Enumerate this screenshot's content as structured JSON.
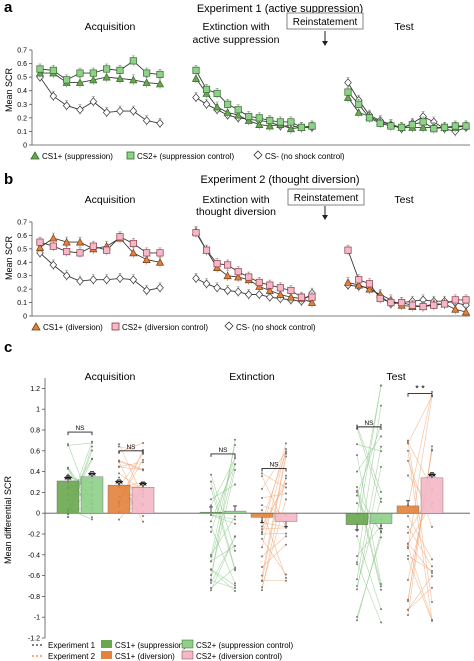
{
  "colors": {
    "cs1_supp": "#6aa84f",
    "cs2_supp": "#8fd08a",
    "cs2_supp_stroke": "#2f6b25",
    "cs1_div": "#e3823c",
    "cs2_div": "#f4b8c6",
    "cs2_div_stroke": "#8a3a4a",
    "csminus": "#ffffff",
    "line": "#3a3a3a",
    "err": "#888888"
  },
  "chart_data": [
    {
      "panel": "a",
      "type": "line",
      "title": "Experiment 1 (active suppression)",
      "ylabel": "Mean SCR",
      "ylim": [
        0,
        0.7
      ],
      "yticks": [
        "0",
        "0.1",
        "0.2",
        "0.3",
        "0.4",
        "0.5",
        "0.6",
        "0.7"
      ],
      "phases": [
        {
          "label": "Acquisition",
          "label2": ""
        },
        {
          "label": "Extinction with",
          "label2": "active suppression"
        },
        {
          "label": "Test",
          "label2": ""
        }
      ],
      "reinstatement": "Reinstatement",
      "legend": [
        "CS1+ (suppression)",
        "CS2+ (suppression control)",
        "CS- (no shock control)"
      ],
      "series": [
        {
          "name": "CS1+ (suppression)",
          "marker": "triangle",
          "phases": [
            [
              0.53,
              0.53,
              0.46,
              0.46,
              0.48,
              0.5,
              0.49,
              0.48,
              0.46,
              0.45
            ],
            [
              0.49,
              0.38,
              0.28,
              0.24,
              0.22,
              0.18,
              0.15,
              0.14,
              0.15,
              0.12,
              0.13,
              0.14
            ],
            [
              0.35,
              0.24,
              0.21,
              0.17,
              0.15,
              0.13,
              0.13,
              0.13,
              0.13,
              0.13,
              0.13,
              0.14
            ]
          ]
        },
        {
          "name": "CS2+ (suppression control)",
          "marker": "square",
          "phases": [
            [
              0.56,
              0.55,
              0.48,
              0.53,
              0.53,
              0.56,
              0.55,
              0.62,
              0.53,
              0.52
            ],
            [
              0.55,
              0.41,
              0.38,
              0.3,
              0.26,
              0.21,
              0.2,
              0.18,
              0.17,
              0.17,
              0.13,
              0.14
            ],
            [
              0.39,
              0.3,
              0.2,
              0.16,
              0.14,
              0.13,
              0.15,
              0.17,
              0.12,
              0.13,
              0.14,
              0.14
            ]
          ]
        },
        {
          "name": "CS- (no shock control)",
          "marker": "diamond",
          "phases": [
            [
              0.5,
              0.36,
              0.29,
              0.26,
              0.32,
              0.24,
              0.25,
              0.25,
              0.18,
              0.16
            ],
            [
              0.35,
              0.3,
              0.26,
              0.22,
              0.2,
              0.19,
              0.18,
              0.17,
              0.14,
              0.14,
              0.13,
              0.13
            ],
            [
              0.46,
              0.33,
              0.22,
              0.18,
              0.15,
              0.12,
              0.16,
              0.21,
              0.17,
              0.12,
              0.1,
              0.13
            ]
          ]
        }
      ]
    },
    {
      "panel": "b",
      "type": "line",
      "title": "Experiment 2 (thought diversion)",
      "ylabel": "Mean SCR",
      "ylim": [
        0,
        0.7
      ],
      "yticks": [
        "0",
        "0.1",
        "0.2",
        "0.3",
        "0.4",
        "0.5",
        "0.6",
        "0.7"
      ],
      "phases": [
        {
          "label": "Acquisition",
          "label2": ""
        },
        {
          "label": "Extinction with",
          "label2": "thought  diversion"
        },
        {
          "label": "Test",
          "label2": ""
        }
      ],
      "reinstatement": "Reinstatement",
      "legend": [
        "CS1+ (diversion)",
        "CS2+ (diversion control)",
        "CS- (no shock control)"
      ],
      "series": [
        {
          "name": "CS1+ (diversion)",
          "marker": "triangle",
          "phases": [
            [
              0.51,
              0.58,
              0.55,
              0.55,
              0.5,
              0.52,
              0.58,
              0.47,
              0.42,
              0.4
            ],
            [
              0.63,
              0.49,
              0.36,
              0.3,
              0.29,
              0.27,
              0.22,
              0.19,
              0.16,
              0.14,
              0.13,
              0.1
            ],
            [
              0.25,
              0.23,
              0.2,
              0.16,
              0.12,
              0.08,
              0.07,
              0.07,
              0.09,
              0.09,
              0.05,
              0.03
            ]
          ]
        },
        {
          "name": "CS2+ (diversion control)",
          "marker": "square",
          "phases": [
            [
              0.55,
              0.52,
              0.48,
              0.47,
              0.52,
              0.49,
              0.59,
              0.54,
              0.47,
              0.47
            ],
            [
              0.62,
              0.49,
              0.39,
              0.38,
              0.33,
              0.29,
              0.25,
              0.23,
              0.21,
              0.19,
              0.14,
              0.14
            ],
            [
              0.49,
              0.27,
              0.24,
              0.13,
              0.1,
              0.1,
              0.08,
              0.07,
              0.08,
              0.09,
              0.12,
              0.12
            ]
          ]
        },
        {
          "name": "CS- (no shock control)",
          "marker": "diamond",
          "phases": [
            [
              0.47,
              0.38,
              0.3,
              0.26,
              0.27,
              0.27,
              0.28,
              0.27,
              0.19,
              0.21
            ],
            [
              0.28,
              0.24,
              0.21,
              0.19,
              0.18,
              0.16,
              0.16,
              0.14,
              0.13,
              0.12,
              0.11,
              0.17
            ],
            [
              0.23,
              0.22,
              0.21,
              0.15,
              0.09,
              0.1,
              0.11,
              0.12,
              0.11,
              0.11,
              0.1,
              0.08
            ]
          ]
        }
      ]
    },
    {
      "panel": "c",
      "type": "bar",
      "ylabel": "Mean differential  SCR",
      "ylim": [
        -1.2,
        1.3
      ],
      "yticks": [
        "-1.2",
        "-1",
        "-0.8",
        "-0.6",
        "-0.4",
        "-0.2",
        "0",
        "0.2",
        "0.4",
        "0.6",
        "0.8",
        "1",
        "1.2"
      ],
      "categories": [
        "Acquisition",
        "Extinction",
        "Test"
      ],
      "series": [
        {
          "name": "CS1+ (suppression)",
          "values": [
            0.31,
            0.01,
            -0.11
          ]
        },
        {
          "name": "CS2+ (suppression control)",
          "values": [
            0.35,
            0.02,
            -0.1
          ]
        },
        {
          "name": "CS1+ (diversion)",
          "values": [
            0.27,
            -0.04,
            0.07
          ]
        },
        {
          "name": "CS2+ (diversion control)",
          "values": [
            0.25,
            -0.08,
            0.34
          ]
        }
      ],
      "significance": {
        "acq_bar_marks": [
          "**",
          "**",
          "**",
          "**"
        ],
        "test_bar_marks": [
          "",
          "",
          "",
          "**"
        ],
        "brackets": [
          "NS",
          "NS",
          "NS",
          "NS",
          "NS",
          "* *"
        ]
      },
      "legend": {
        "experiment_lines": [
          "Experiment 1",
          "Experiment 2"
        ],
        "entries": [
          "CS1+ (suppression)",
          "CS2+ (suppression control)",
          "CS1+ (diversion)",
          "CS2+ (diversion control)"
        ]
      }
    }
  ],
  "panel_letters": [
    "a",
    "b",
    "c"
  ]
}
